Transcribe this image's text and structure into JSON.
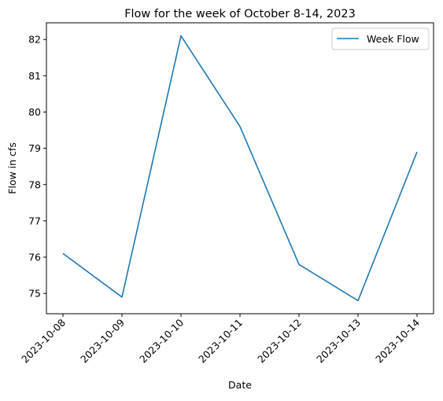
{
  "chart_data": {
    "type": "line",
    "title": "Flow for the week of October 8-14, 2023",
    "xlabel": "Date",
    "ylabel": "Flow in cfs",
    "x": [
      "2023-10-08",
      "2023-10-09",
      "2023-10-10",
      "2023-10-11",
      "2023-10-12",
      "2023-10-13",
      "2023-10-14"
    ],
    "series": [
      {
        "name": "Week Flow",
        "color": "#1f77b4",
        "values": [
          76.1,
          74.9,
          82.1,
          79.6,
          75.8,
          74.8,
          78.9
        ]
      }
    ],
    "yticks": [
      75,
      76,
      77,
      78,
      79,
      80,
      81,
      82
    ],
    "ylim": [
      74.44,
      82.46
    ],
    "grid": false,
    "legend_position": "top-right"
  }
}
